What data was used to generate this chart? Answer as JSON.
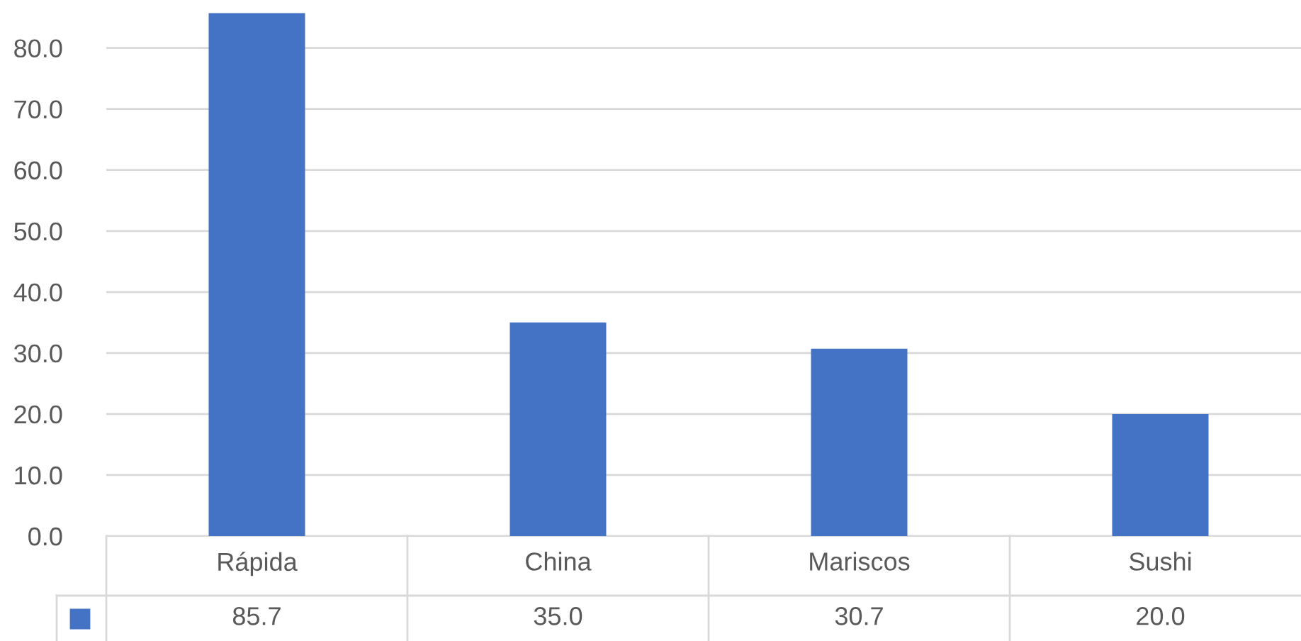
{
  "chart_data": {
    "type": "bar",
    "categories": [
      "Rápida",
      "China",
      "Mariscos",
      "Sushi"
    ],
    "series": [
      {
        "color": "#4472c4",
        "values": [
          85.7,
          35.0,
          30.7,
          20.0
        ]
      }
    ],
    "value_labels": [
      "85.7",
      "35.0",
      "30.7",
      "20.0"
    ],
    "ylim": [
      0,
      86
    ],
    "yticks": [
      {
        "value": 0,
        "label": "0.0"
      },
      {
        "value": 10,
        "label": "10.0"
      },
      {
        "value": 20,
        "label": "20.0"
      },
      {
        "value": 30,
        "label": "30.0"
      },
      {
        "value": 40,
        "label": "40.0"
      },
      {
        "value": 50,
        "label": "50.0"
      },
      {
        "value": 60,
        "label": "60.0"
      },
      {
        "value": 70,
        "label": "70.0"
      },
      {
        "value": 80,
        "label": "80.0"
      }
    ],
    "grid": "y"
  }
}
